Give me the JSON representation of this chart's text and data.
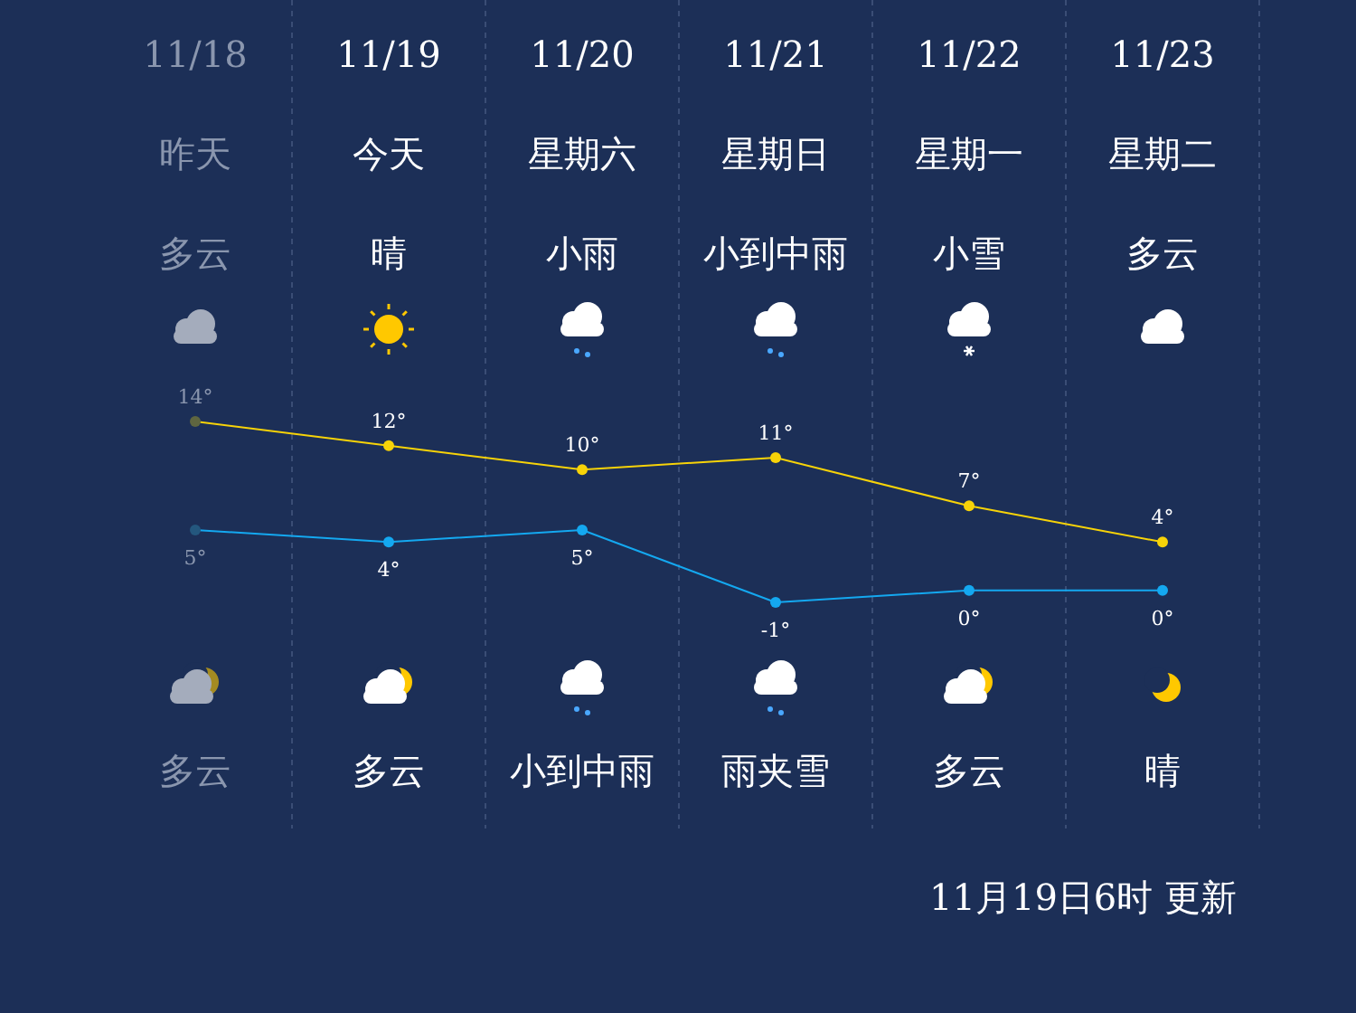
{
  "chart_data": {
    "type": "line",
    "categories": [
      "11/18",
      "11/19",
      "11/20",
      "11/21",
      "11/22",
      "11/23"
    ],
    "grid": "x",
    "marker": "circle",
    "series": [
      {
        "color": "#f7d308",
        "colors": [
          "#5f6640",
          "#f7d308",
          "#f7d308",
          "#f7d308",
          "#f7d308",
          "#f7d308"
        ],
        "values": [
          14,
          12,
          10,
          11,
          7,
          4
        ],
        "value_labels": [
          "14°",
          "12°",
          "10°",
          "11°",
          "7°",
          "4°"
        ]
      },
      {
        "color": "#14a8f0",
        "colors": [
          "#24577e",
          "#14a8f0",
          "#14a8f0",
          "#14a8f0",
          "#14a8f0",
          "#14a8f0"
        ],
        "values": [
          5,
          4,
          5,
          -1,
          0,
          0
        ],
        "value_labels": [
          "5°",
          "4°",
          "5°",
          "-1°",
          "0°",
          "0°"
        ]
      }
    ],
    "annotations": [
      "昨天",
      "今天",
      "星期六",
      "星期日",
      "星期一",
      "星期二",
      "多云",
      "晴",
      "小雨",
      "小到中雨",
      "小雪",
      "多云",
      "多云",
      "多云",
      "小到中雨",
      "雨夹雪",
      "多云",
      "晴",
      "11月19日6时 更新"
    ]
  }
}
